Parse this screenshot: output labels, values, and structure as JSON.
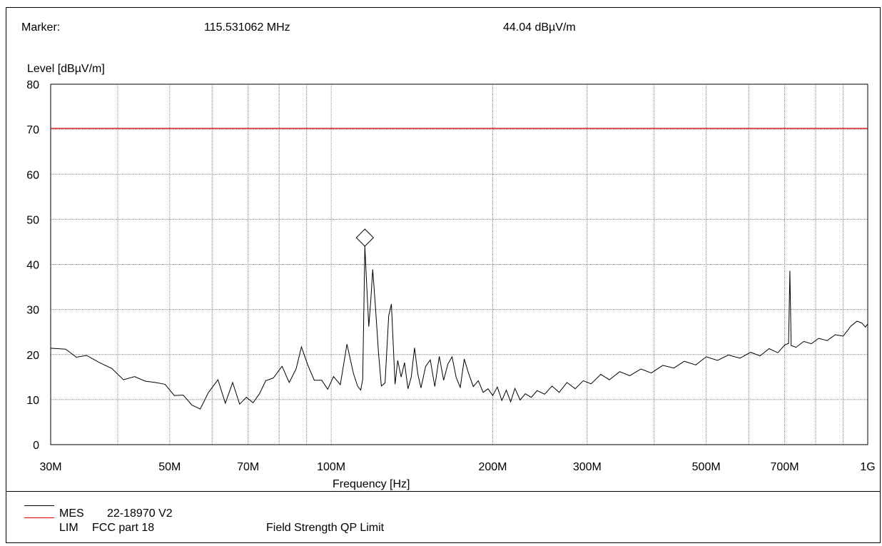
{
  "header": {
    "marker_label": "Marker:",
    "marker_freq": "115.531062 MHz",
    "marker_level": "44.04 dBµV/m"
  },
  "colors": {
    "measurement": "#000000",
    "limit": "#e00000",
    "grid": "#808080"
  },
  "chart_data": {
    "type": "line",
    "title": "",
    "xlabel": "Frequency [Hz]",
    "ylabel": "Level [dBµV/m]",
    "x_scale": "log",
    "xlim_mhz": [
      30,
      1000
    ],
    "ylim": [
      0,
      80
    ],
    "grid": true,
    "ytick_labels": [
      "0",
      "10",
      "20",
      "30",
      "40",
      "50",
      "60",
      "70",
      "80"
    ],
    "xtick_labels": [
      {
        "mhz": 30,
        "label": "30M"
      },
      {
        "mhz": 50,
        "label": "50M"
      },
      {
        "mhz": 70,
        "label": "70M"
      },
      {
        "mhz": 100,
        "label": "100M"
      },
      {
        "mhz": 200,
        "label": "200M"
      },
      {
        "mhz": 300,
        "label": "300M"
      },
      {
        "mhz": 500,
        "label": "500M"
      },
      {
        "mhz": 700,
        "label": "700M"
      },
      {
        "mhz": 1000,
        "label": "1G"
      }
    ],
    "grid_mhz": [
      30,
      40,
      50,
      60,
      70,
      80,
      90,
      100,
      200,
      300,
      400,
      500,
      600,
      700,
      800,
      900,
      1000
    ],
    "limit": {
      "name": "LIM",
      "values": [
        70.2,
        70.2
      ]
    },
    "marker": {
      "mhz": 115.53,
      "level": 44.04
    },
    "series": [
      {
        "name": "MES",
        "points": [
          [
            30,
            21.4
          ],
          [
            32,
            21.2
          ],
          [
            33.5,
            19.4
          ],
          [
            35,
            19.8
          ],
          [
            37,
            18.2
          ],
          [
            39,
            16.9
          ],
          [
            41,
            14.4
          ],
          [
            43,
            15.1
          ],
          [
            45,
            14.1
          ],
          [
            47,
            13.8
          ],
          [
            49,
            13.4
          ],
          [
            51,
            10.9
          ],
          [
            53,
            11.0
          ],
          [
            55,
            8.8
          ],
          [
            57,
            7.9
          ],
          [
            59,
            11.5
          ],
          [
            61.5,
            14.4
          ],
          [
            63.5,
            9.2
          ],
          [
            65.5,
            13.8
          ],
          [
            67.5,
            9.0
          ],
          [
            69.5,
            10.5
          ],
          [
            71.5,
            9.3
          ],
          [
            73.5,
            11.3
          ],
          [
            75.5,
            14.2
          ],
          [
            78,
            14.8
          ],
          [
            81,
            17.4
          ],
          [
            83.5,
            13.8
          ],
          [
            86,
            16.8
          ],
          [
            88,
            21.7
          ],
          [
            90.5,
            17.6
          ],
          [
            93,
            14.3
          ],
          [
            96,
            14.3
          ],
          [
            98.5,
            12.3
          ],
          [
            101,
            15.1
          ],
          [
            104,
            13.3
          ],
          [
            107,
            22.3
          ],
          [
            110,
            15.8
          ],
          [
            112,
            13.0
          ],
          [
            113.5,
            12.1
          ],
          [
            114.5,
            14.5
          ],
          [
            115.53,
            44.04
          ],
          [
            116.5,
            35.0
          ],
          [
            117.5,
            26.2
          ],
          [
            118.5,
            32.0
          ],
          [
            119.5,
            38.9
          ],
          [
            121,
            30.0
          ],
          [
            122.5,
            20.4
          ],
          [
            124,
            13.0
          ],
          [
            126,
            13.7
          ],
          [
            128,
            28.6
          ],
          [
            129.5,
            31.2
          ],
          [
            131.5,
            13.4
          ],
          [
            133,
            18.7
          ],
          [
            135,
            15.0
          ],
          [
            137,
            18.2
          ],
          [
            139,
            12.4
          ],
          [
            141,
            15.0
          ],
          [
            143,
            21.5
          ],
          [
            145,
            15.7
          ],
          [
            147,
            12.6
          ],
          [
            150,
            17.4
          ],
          [
            153,
            18.8
          ],
          [
            156,
            12.9
          ],
          [
            159,
            19.6
          ],
          [
            162,
            14.3
          ],
          [
            165,
            17.9
          ],
          [
            168,
            19.5
          ],
          [
            171,
            14.9
          ],
          [
            174,
            12.7
          ],
          [
            177,
            19.0
          ],
          [
            180,
            16.1
          ],
          [
            184,
            12.9
          ],
          [
            188,
            14.2
          ],
          [
            192,
            11.6
          ],
          [
            196,
            12.4
          ],
          [
            200,
            10.9
          ],
          [
            204,
            12.8
          ],
          [
            208,
            9.8
          ],
          [
            212,
            12.1
          ],
          [
            216,
            9.5
          ],
          [
            220,
            12.5
          ],
          [
            225,
            9.9
          ],
          [
            230,
            11.3
          ],
          [
            236,
            10.5
          ],
          [
            242,
            12.0
          ],
          [
            250,
            11.2
          ],
          [
            258,
            13.0
          ],
          [
            266,
            11.6
          ],
          [
            275,
            13.8
          ],
          [
            285,
            12.4
          ],
          [
            295,
            14.2
          ],
          [
            305,
            13.5
          ],
          [
            318,
            15.6
          ],
          [
            330,
            14.4
          ],
          [
            345,
            16.2
          ],
          [
            360,
            15.3
          ],
          [
            378,
            16.8
          ],
          [
            395,
            15.9
          ],
          [
            415,
            17.6
          ],
          [
            435,
            17.0
          ],
          [
            455,
            18.5
          ],
          [
            478,
            17.7
          ],
          [
            500,
            19.5
          ],
          [
            525,
            18.7
          ],
          [
            550,
            19.9
          ],
          [
            578,
            19.2
          ],
          [
            605,
            20.5
          ],
          [
            630,
            19.7
          ],
          [
            655,
            21.3
          ],
          [
            680,
            20.4
          ],
          [
            700,
            22.1
          ],
          [
            712,
            22.5
          ],
          [
            716,
            38.6
          ],
          [
            720,
            22.0
          ],
          [
            735,
            21.6
          ],
          [
            760,
            22.9
          ],
          [
            785,
            22.4
          ],
          [
            810,
            23.6
          ],
          [
            840,
            23.1
          ],
          [
            870,
            24.4
          ],
          [
            900,
            24.1
          ],
          [
            930,
            26.3
          ],
          [
            955,
            27.4
          ],
          [
            975,
            27.0
          ],
          [
            990,
            26.1
          ],
          [
            1000,
            26.8
          ]
        ]
      }
    ]
  },
  "legend": [
    {
      "label": "MES",
      "desc": "22-18970 V2",
      "note": ""
    },
    {
      "label": "LIM",
      "desc": "FCC part 18",
      "note": "Field Strength QP Limit"
    }
  ]
}
